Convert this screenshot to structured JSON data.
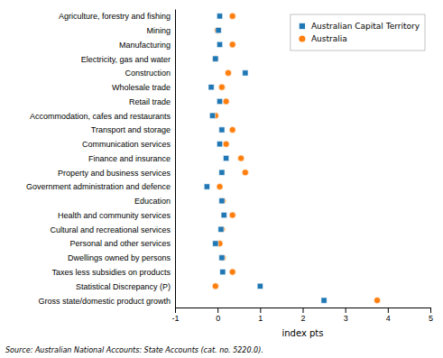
{
  "chart_data": {
    "type": "dot",
    "orientation": "horizontal",
    "categories": [
      "Agriculture, forestry and fishing",
      "Mining",
      "Manufacturing",
      "Electricity, gas and water",
      "Construction",
      "Wholesale trade",
      "Retail trade",
      "Accommodation, cafes and restaurants",
      "Transport and storage",
      "Communication services",
      "Finance and insurance",
      "Property and business services",
      "Government administration and defence",
      "Education",
      "Health and community services",
      "Cultural and recreational services",
      "Personal and other services",
      "Dwellings owned by persons",
      "Taxes less subsidies on products",
      "Statistical Discrepancy (P)",
      "Gross state/domestic product growth"
    ],
    "series": [
      {
        "name": "Australian Capital Territory",
        "marker": "square",
        "values": [
          0.05,
          0.02,
          0.05,
          -0.05,
          0.65,
          -0.15,
          0.05,
          -0.12,
          0.1,
          0.05,
          0.2,
          0.1,
          -0.25,
          0.1,
          0.15,
          0.08,
          -0.05,
          0.1,
          0.12,
          1.0,
          2.5
        ]
      },
      {
        "name": "Australia",
        "marker": "circle",
        "values": [
          0.35,
          0.0,
          0.35,
          -0.05,
          0.25,
          0.1,
          0.2,
          -0.05,
          0.35,
          0.2,
          0.55,
          0.65,
          0.05,
          0.12,
          0.35,
          0.1,
          0.05,
          0.12,
          0.35,
          -0.05,
          3.75
        ]
      }
    ],
    "x_label": "index pts",
    "xlim": [
      -1,
      5
    ],
    "xticks": [
      -1,
      0,
      1,
      2,
      3,
      4,
      5
    ],
    "legend": "upper right",
    "grid": false,
    "annotations": [
      "Source: Australian National Accounts: State Accounts (cat. no. 5220.0)."
    ]
  }
}
